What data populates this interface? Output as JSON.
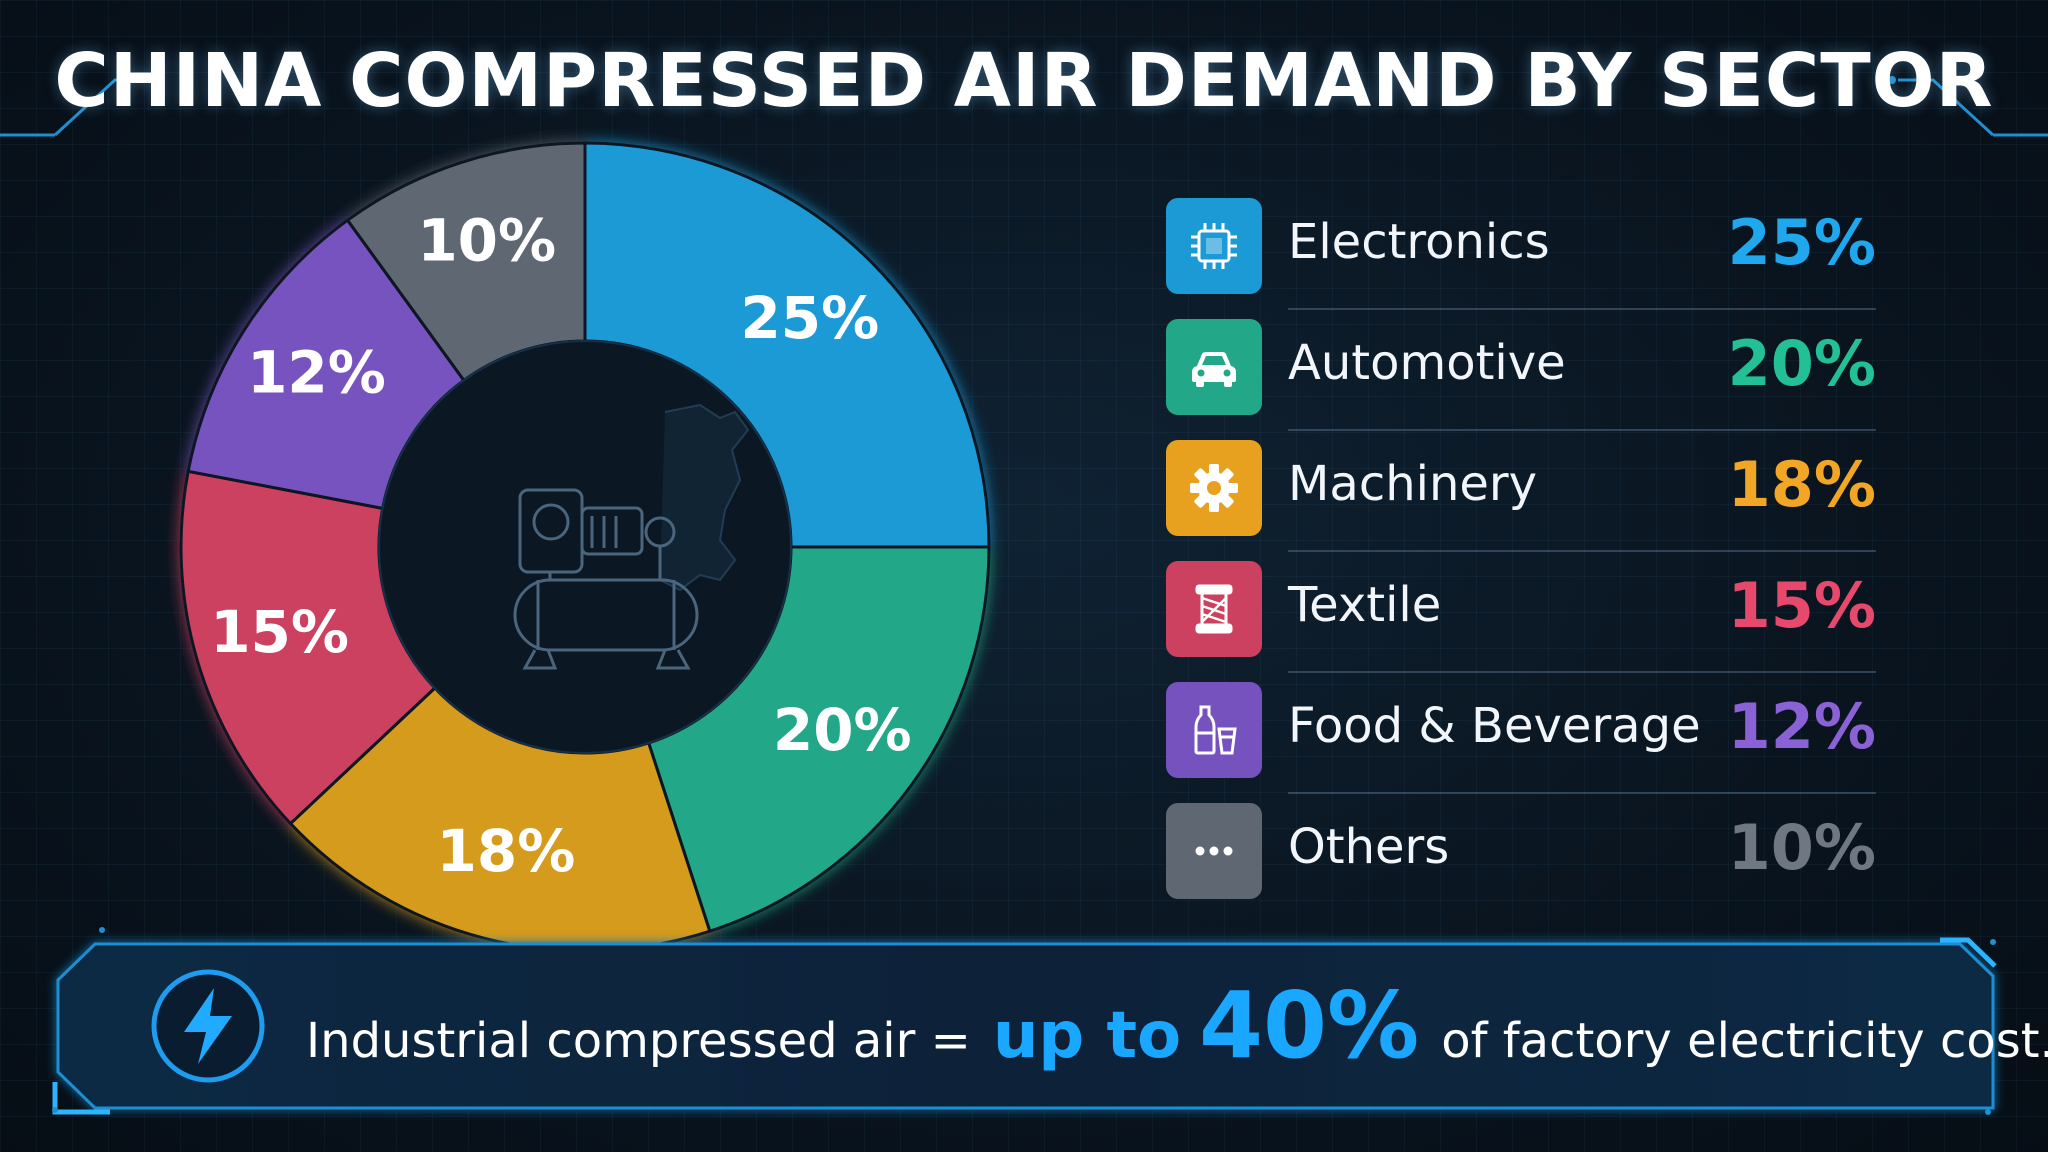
{
  "title": "CHINA COMPRESSED AIR DEMAND BY SECTOR",
  "chart_data": {
    "type": "pie",
    "style": "donut",
    "title": "CHINA COMPRESSED AIR DEMAND BY SECTOR",
    "legend_position": "right",
    "categories": [
      "Electronics",
      "Automotive",
      "Machinery",
      "Textile",
      "Food & Beverage",
      "Others"
    ],
    "values": [
      25,
      20,
      18,
      15,
      12,
      10
    ],
    "value_labels": [
      "25%",
      "20%",
      "18%",
      "15%",
      "12%",
      "10%"
    ],
    "colors": [
      "#1c9ad6",
      "#22a888",
      "#d49b1c",
      "#cc4160",
      "#7652be",
      "#5f6872"
    ],
    "accent_colors": [
      "#1fa8ee",
      "#23c096",
      "#f1a626",
      "#e6496c",
      "#8a62d6",
      "#6f7882"
    ],
    "icons": [
      "chip-icon",
      "car-icon",
      "gear-icon",
      "spool-icon",
      "bottle-cup-icon",
      "dots-icon"
    ],
    "center_icon": "air-compressor-icon"
  },
  "banner": {
    "icon": "lightning-bolt-icon",
    "text_before": "Industrial compressed air =",
    "text_highlight": "up to",
    "text_big": "40%",
    "text_after": "of factory electricity cost."
  }
}
